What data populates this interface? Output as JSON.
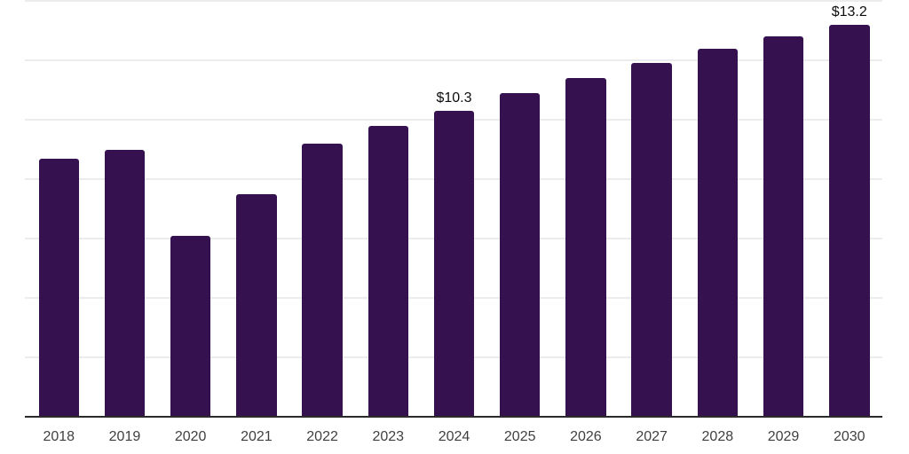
{
  "chart_data": {
    "type": "bar",
    "title": "",
    "xlabel": "",
    "ylabel": "",
    "categories": [
      "2018",
      "2019",
      "2020",
      "2021",
      "2022",
      "2023",
      "2024",
      "2025",
      "2026",
      "2027",
      "2028",
      "2029",
      "2030"
    ],
    "values": [
      8.7,
      9.0,
      6.1,
      7.5,
      9.2,
      9.8,
      10.3,
      10.9,
      11.4,
      11.9,
      12.4,
      12.8,
      13.2
    ],
    "data_labels": [
      "",
      "",
      "",
      "",
      "",
      "",
      "$10.3",
      "",
      "",
      "",
      "",
      "",
      "$13.2"
    ],
    "ylim": [
      0,
      14
    ],
    "gridline_step": 2,
    "y_tick_labels_visible": false,
    "grid": "horizontal",
    "legend": "none",
    "value_format": "USD, labeled points only"
  },
  "colors": {
    "background": "#ffffff",
    "bar": "#351150",
    "gridline": "#ececec",
    "axis_line": "#2b2b2b",
    "tick_label": "#404040",
    "data_label": "#0d0d0d"
  }
}
